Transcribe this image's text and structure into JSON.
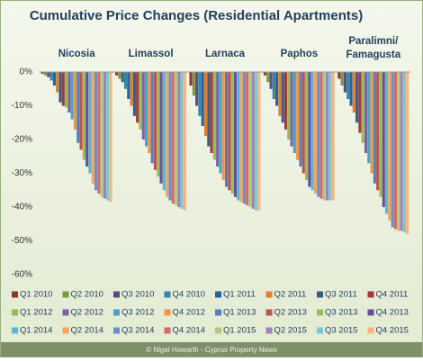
{
  "chart_data": {
    "type": "bar",
    "title": "Cumulative Price Changes (Residential Apartments)",
    "categories": [
      "Nicosia",
      "Limassol",
      "Larnaca",
      "Paphos",
      "Paralimni/ Famagusta"
    ],
    "ylim": [
      -60,
      0
    ],
    "yticks": [
      {
        "value": 0,
        "label": "0%"
      },
      {
        "value": -10,
        "label": "-10%"
      },
      {
        "value": -20,
        "label": "-20%"
      },
      {
        "value": -30,
        "label": "-30%"
      },
      {
        "value": -40,
        "label": "-40%"
      },
      {
        "value": -50,
        "label": "-50%"
      },
      {
        "value": -60,
        "label": "-60%"
      }
    ],
    "grid": false,
    "source": "© Nigel Howarth - Cyprus Property News",
    "series": [
      {
        "name": "Q1 2010",
        "color": "#8c3a33",
        "values": [
          -0.5,
          -1,
          -4,
          -1,
          -2
        ]
      },
      {
        "name": "Q2 2010",
        "color": "#7a9a3e",
        "values": [
          -1,
          -2,
          -7,
          -3,
          -4
        ]
      },
      {
        "name": "Q3 2010",
        "color": "#5f4b82",
        "values": [
          -1.5,
          -3,
          -10,
          -5,
          -6
        ]
      },
      {
        "name": "Q4 2010",
        "color": "#2f8aa0",
        "values": [
          -2.5,
          -5,
          -13,
          -8,
          -8
        ]
      },
      {
        "name": "Q1 2011",
        "color": "#2c5f9e",
        "values": [
          -4,
          -8,
          -16,
          -10,
          -10
        ]
      },
      {
        "name": "Q2 2011",
        "color": "#e0802e",
        "values": [
          -6,
          -10,
          -19,
          -13,
          -12
        ]
      },
      {
        "name": "Q3 2011",
        "color": "#3c5a8c",
        "values": [
          -9,
          -13,
          -22,
          -15,
          -15
        ]
      },
      {
        "name": "Q4 2011",
        "color": "#9e3b37",
        "values": [
          -10,
          -15,
          -24,
          -17,
          -18
        ]
      },
      {
        "name": "Q1 2012",
        "color": "#98b85a",
        "values": [
          -10.5,
          -17,
          -26,
          -20,
          -21
        ]
      },
      {
        "name": "Q2 2012",
        "color": "#7d63a6",
        "values": [
          -12,
          -20,
          -28,
          -22,
          -24
        ]
      },
      {
        "name": "Q3 2012",
        "color": "#45a7c4",
        "values": [
          -14,
          -22,
          -30,
          -24,
          -27
        ]
      },
      {
        "name": "Q4 2012",
        "color": "#f29440",
        "values": [
          -17,
          -24,
          -32,
          -26,
          -30
        ]
      },
      {
        "name": "Q1 2013",
        "color": "#4f7fbd",
        "values": [
          -21,
          -27,
          -34,
          -28,
          -33
        ]
      },
      {
        "name": "Q2 2013",
        "color": "#c0504d",
        "values": [
          -23,
          -29,
          -35,
          -30,
          -35
        ]
      },
      {
        "name": "Q3 2013",
        "color": "#9bbb59",
        "values": [
          -26,
          -31,
          -36,
          -32,
          -37
        ]
      },
      {
        "name": "Q4 2013",
        "color": "#6a4e9a",
        "values": [
          -28,
          -33,
          -37,
          -34,
          -40
        ]
      },
      {
        "name": "Q1 2014",
        "color": "#5bb7d1",
        "values": [
          -30,
          -35,
          -38,
          -35,
          -42
        ]
      },
      {
        "name": "Q2 2014",
        "color": "#f6a35c",
        "values": [
          -33,
          -37,
          -38.5,
          -36,
          -44
        ]
      },
      {
        "name": "Q3 2014",
        "color": "#6b8ec9",
        "values": [
          -35,
          -38,
          -39,
          -37,
          -46
        ]
      },
      {
        "name": "Q4 2014",
        "color": "#d46a66",
        "values": [
          -36,
          -39,
          -39.5,
          -37.5,
          -46.5
        ]
      },
      {
        "name": "Q1 2015",
        "color": "#b0cc7a",
        "values": [
          -37,
          -39.5,
          -40,
          -38,
          -47
        ]
      },
      {
        "name": "Q2 2015",
        "color": "#9a84bb",
        "values": [
          -37.5,
          -40,
          -40.5,
          -38,
          -47
        ]
      },
      {
        "name": "Q3 2015",
        "color": "#7cc6da",
        "values": [
          -38,
          -40.5,
          -41,
          -38,
          -47.5
        ]
      },
      {
        "name": "Q4 2015",
        "color": "#f8b57c",
        "values": [
          -38.5,
          -41,
          -41,
          -38,
          -48
        ]
      }
    ]
  }
}
